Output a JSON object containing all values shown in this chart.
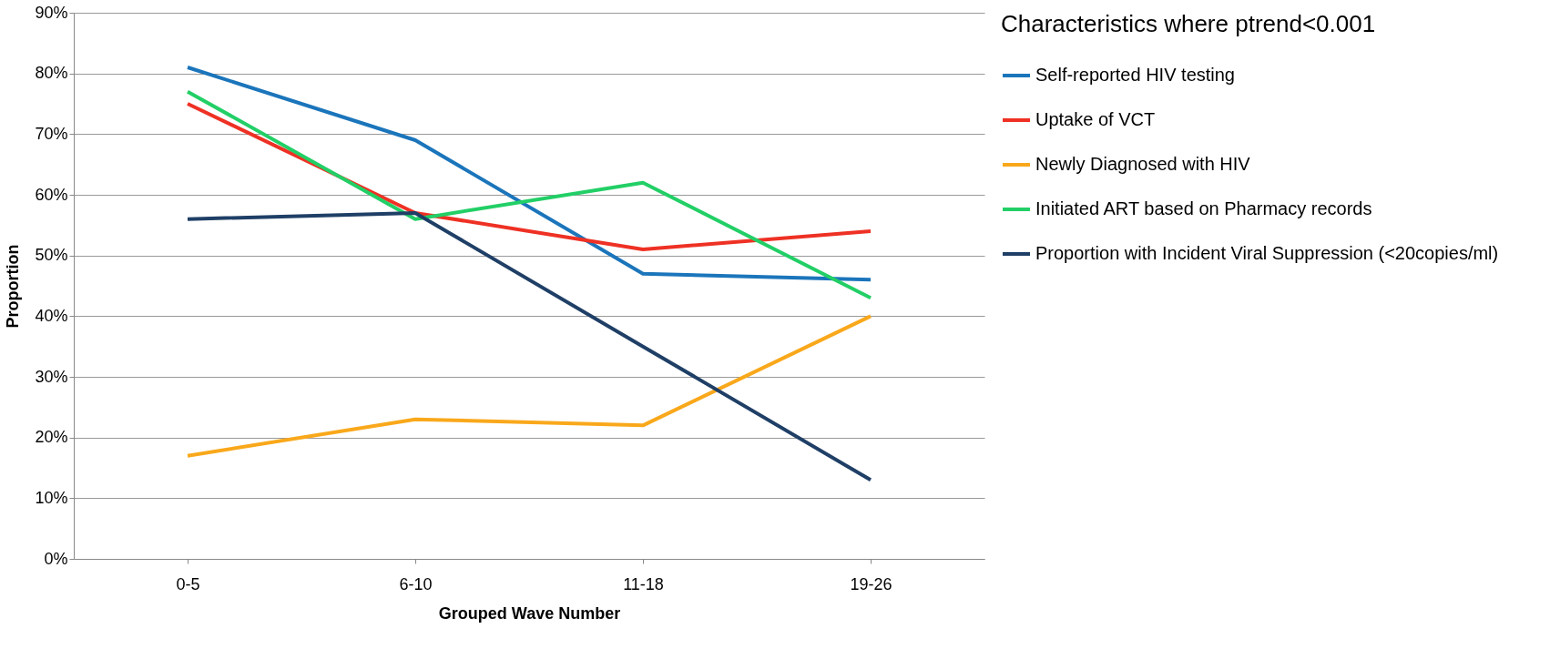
{
  "chart_data": {
    "type": "line",
    "xlabel": "Grouped Wave Number",
    "ylabel": "Proportion",
    "legend_title": "Characteristics where ptrend<0.001",
    "categories": [
      "0-5",
      "6-10",
      "11-18",
      "19-26"
    ],
    "series": [
      {
        "name": "Self-reported HIV testing",
        "color": "#1b75bb",
        "values": [
          81,
          69,
          47,
          46
        ]
      },
      {
        "name": "Uptake of VCT",
        "color": "#ee3124",
        "values": [
          75,
          57,
          51,
          54
        ]
      },
      {
        "name": "Newly Diagnosed with HIV",
        "color": "#f9a81b",
        "values": [
          17,
          23,
          22,
          40
        ]
      },
      {
        "name": "Initiated ART based on Pharmacy records",
        "color": "#22cf66",
        "values": [
          77,
          56,
          62,
          43
        ]
      },
      {
        "name": "Proportion with Incident Viral Suppression (<20copies/ml)",
        "color": "#1f3f66",
        "values": [
          56,
          57,
          35,
          13
        ]
      }
    ],
    "ylim": [
      0,
      90
    ],
    "yticks": [
      {
        "value": 0,
        "label": "0%"
      },
      {
        "value": 10,
        "label": "10%"
      },
      {
        "value": 20,
        "label": "20%"
      },
      {
        "value": 30,
        "label": "30%"
      },
      {
        "value": 40,
        "label": "40%"
      },
      {
        "value": 50,
        "label": "50%"
      },
      {
        "value": 60,
        "label": "60%"
      },
      {
        "value": 70,
        "label": "70%"
      },
      {
        "value": 80,
        "label": "80%"
      },
      {
        "value": 90,
        "label": "90%"
      }
    ],
    "grid": "y",
    "legend": "right",
    "marker": "none",
    "line_style": "solid"
  }
}
